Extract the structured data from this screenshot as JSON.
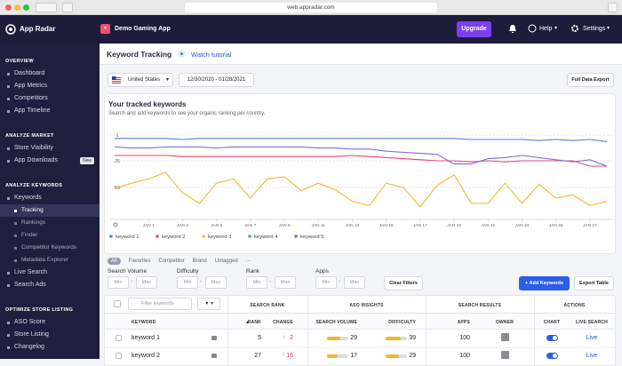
{
  "browser": {
    "url": "web.appradar.com"
  },
  "header": {
    "logo": "App Radar",
    "app": "Demo Gaming App",
    "upgrade": "Upgrade",
    "help": "Help",
    "settings": "Settings"
  },
  "sidebar": {
    "sections": [
      {
        "title": "OVERVIEW",
        "items": [
          {
            "label": "Dashboard"
          },
          {
            "label": "App Metrics"
          },
          {
            "label": "Competitors"
          },
          {
            "label": "App Timeline"
          }
        ]
      },
      {
        "title": "ANALYZE MARKET",
        "items": [
          {
            "label": "Store Visibility"
          },
          {
            "label": "App Downloads",
            "badge": "New"
          }
        ]
      },
      {
        "title": "ANALYZE KEYWORDS",
        "items": [
          {
            "label": "Keywords",
            "children": [
              "Tracking",
              "Rankings",
              "Finder",
              "Competitor Keywords",
              "Metadata Explorer"
            ]
          },
          {
            "label": "Live Search"
          },
          {
            "label": "Search Ads"
          }
        ]
      },
      {
        "title": "OPTIMIZE STORE LISTING",
        "items": [
          {
            "label": "ASO Score"
          },
          {
            "label": "Store Listing"
          },
          {
            "label": "Changelog"
          }
        ]
      }
    ]
  },
  "page": {
    "title": "Keyword Tracking",
    "tutorial": "Watch tutorial"
  },
  "toolbar": {
    "country": "United States",
    "date_range": "12/30/2020 - 01/28/2021",
    "export": "Full Data Export"
  },
  "chart": {
    "type": "line",
    "title": "Your tracked keywords",
    "subtitle": "Search and add keywords to see your organic ranking per country.",
    "categories": [
      null,
      null,
      "JAN 1",
      null,
      "JAN 3",
      null,
      "JAN 5",
      null,
      "JAN 7",
      null,
      "JAN 9",
      null,
      "JAN 11",
      null,
      "JAN 13",
      null,
      "JAN 15",
      null,
      "JAN 17",
      null,
      "JAN 19",
      null,
      "JAN 21",
      null,
      "JAN 23",
      null,
      "JAN 25",
      null,
      "JAN 27",
      null
    ],
    "ylim": [
      0,
      80
    ],
    "y_inverted": true,
    "yticks": [
      1,
      25,
      50
    ],
    "grid": true,
    "series": [
      {
        "name": "keyword 1",
        "color": "#4f7fe0",
        "values": [
          4,
          4,
          4,
          4,
          5,
          4,
          4,
          4,
          4,
          4,
          4,
          4,
          4,
          4,
          4,
          4,
          4,
          4,
          4,
          4,
          4,
          5,
          5,
          5,
          5,
          6,
          5,
          6,
          5,
          7
        ]
      },
      {
        "name": "keyword 2",
        "color": "#e8447a",
        "values": [
          20,
          20,
          20,
          20,
          21,
          21,
          21,
          21,
          21,
          21,
          21,
          21,
          21,
          21,
          20,
          21,
          22,
          23,
          24,
          25,
          25,
          26,
          25,
          26,
          25,
          25,
          25,
          25,
          30,
          30
        ]
      },
      {
        "name": "keyword 3",
        "color": "#f3b72c",
        "values": [
          51,
          46,
          42,
          36,
          55,
          65,
          46,
          42,
          60,
          42,
          40,
          53,
          46,
          52,
          63,
          67,
          46,
          50,
          68,
          48,
          38,
          65,
          65,
          46,
          65,
          47,
          60,
          57,
          67,
          63
        ]
      },
      {
        "name": "keyword 4",
        "color": "#3db37a",
        "values": [
          null,
          null,
          null,
          null,
          null,
          null,
          null,
          null,
          null,
          null,
          null,
          null,
          null,
          null,
          null,
          null,
          null,
          null,
          null,
          null,
          null,
          null,
          null,
          null,
          null,
          null,
          null,
          null,
          null,
          null
        ]
      },
      {
        "name": "keyword 5",
        "color": "#7b6fe0",
        "values": [
          12,
          13,
          13,
          12,
          12,
          12,
          13,
          12,
          12,
          12,
          12,
          12,
          13,
          13,
          14,
          14,
          16,
          17,
          18,
          19,
          28,
          28,
          23,
          22,
          20,
          22,
          24,
          26,
          24,
          30
        ]
      }
    ]
  },
  "filters": {
    "tabs": [
      "All",
      "Favorites",
      "Competitor",
      "Brand",
      "Untagged",
      "···"
    ],
    "fields": [
      "Search Volume",
      "Difficulty",
      "Rank",
      "Apps"
    ],
    "min_placeholder": "Min",
    "max_placeholder": "Max",
    "clear": "Clear Filters",
    "add": "+ Add Keywords",
    "export": "Export Table"
  },
  "table": {
    "filter_placeholder": "Filter keywords",
    "groups": [
      "SEARCH RANK",
      "ASO INSIGHTS",
      "SEARCH RESULTS",
      "ACTIONS"
    ],
    "columns": [
      "KEYWORD",
      "RANK",
      "CHANGE",
      "SEARCH VOLUME",
      "DIFFICULTY",
      "APPS",
      "OWNER",
      "CHART",
      "LIVE SEARCH"
    ],
    "rows": [
      [
        "keyword 1",
        5,
        2,
        29,
        39,
        100,
        "Live"
      ],
      [
        "keyword 2",
        27,
        16,
        17,
        29,
        100,
        "Live"
      ]
    ]
  }
}
